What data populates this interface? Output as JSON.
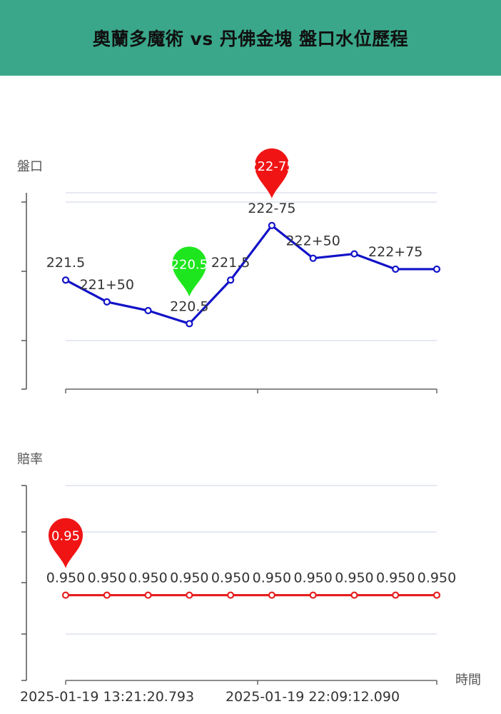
{
  "header": {
    "title": "奧蘭多魔術 vs 丹佛金塊 盤口水位歷程"
  },
  "colors": {
    "header_bg": "#3aa78a",
    "handicap_line": "#1212c8",
    "odds_line": "#e61e1e",
    "pin_max": "#f01414",
    "pin_min": "#1ee61e",
    "grid": "#dde2ef"
  },
  "chart_data": [
    {
      "type": "line",
      "ylabel": "盤口",
      "points": [
        {
          "value": 221.5,
          "label": "221.5"
        },
        {
          "value": 221.0,
          "label": "221+50"
        },
        {
          "value": 220.8,
          "label": ""
        },
        {
          "value": 220.5,
          "label": "220.5"
        },
        {
          "value": 221.5,
          "label": "221.5"
        },
        {
          "value": 222.75,
          "label": "222-75"
        },
        {
          "value": 222.0,
          "label": "222+50"
        },
        {
          "value": 222.1,
          "label": ""
        },
        {
          "value": 221.75,
          "label": "222+75"
        },
        {
          "value": 221.75,
          "label": ""
        }
      ],
      "ylim": [
        219.0,
        223.5
      ],
      "grid": true,
      "markers": {
        "max": {
          "index": 5,
          "text": "222-75"
        },
        "min": {
          "index": 3,
          "text": "220.5"
        }
      }
    },
    {
      "type": "line",
      "ylabel": "賠率",
      "xlabel": "時間",
      "x_ticks": [
        "2025-01-19 13:21:20.793",
        "2025-01-19 22:09:12.090"
      ],
      "points": [
        {
          "value": 0.95,
          "label": "0.950"
        },
        {
          "value": 0.95,
          "label": "0.950"
        },
        {
          "value": 0.95,
          "label": "0.950"
        },
        {
          "value": 0.95,
          "label": "0.950"
        },
        {
          "value": 0.95,
          "label": "0.950"
        },
        {
          "value": 0.95,
          "label": "0.950"
        },
        {
          "value": 0.95,
          "label": "0.950"
        },
        {
          "value": 0.95,
          "label": "0.950"
        },
        {
          "value": 0.95,
          "label": "0.950"
        },
        {
          "value": 0.95,
          "label": "0.950"
        }
      ],
      "ylim": [
        0.6,
        1.4
      ],
      "grid": true,
      "markers": {
        "max": {
          "index": 0,
          "text": "0.95"
        }
      }
    }
  ]
}
